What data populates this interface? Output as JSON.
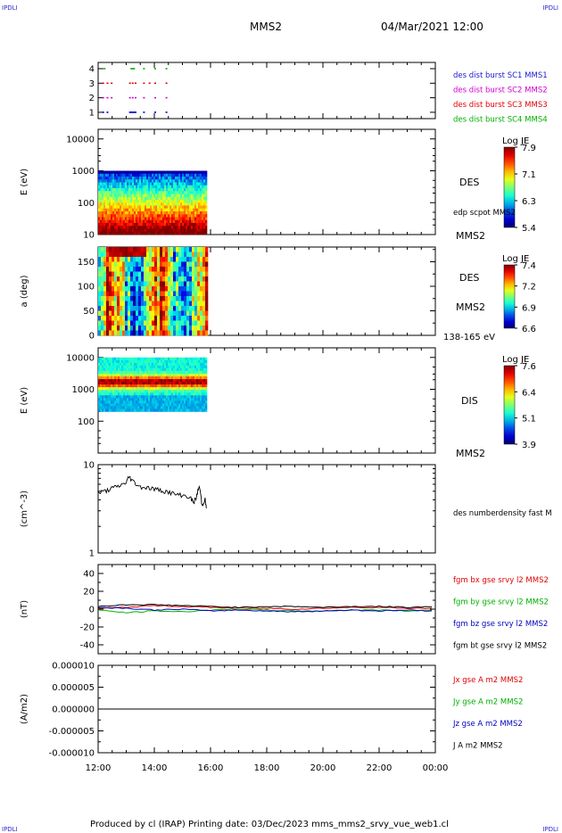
{
  "header": {
    "corner_left": "IPDLI",
    "corner_right": "IPDLI",
    "title": "MMS2",
    "datetime": "04/Mar/2021 12:00"
  },
  "footer": {
    "text": "Produced by cl (IRAP)   Printing date: 03/Dec/2023   mms_mms2_srvy_vue_web1.cl",
    "corner_left": "IPDLI",
    "corner_right": "IPDLI"
  },
  "time_axis": {
    "start_hour": 12,
    "end_hour": 24,
    "tick_labels": [
      "12:00",
      "14:00",
      "16:00",
      "18:00",
      "20:00",
      "22:00",
      "00:00"
    ],
    "tick_hours": [
      12,
      14,
      16,
      18,
      20,
      22,
      24
    ]
  },
  "colors": {
    "red": "#e00000",
    "magenta": "#d000d0",
    "blue": "#0000c0",
    "green": "#00b000",
    "black": "#000000",
    "label_blue": "#1a1ad0"
  },
  "chart_data": [
    {
      "type": "scatter",
      "panel": "availability",
      "yticks": [
        "4",
        "3",
        "2",
        "1"
      ],
      "legend": [
        {
          "label": "des dist burst SC1 MMS1",
          "color": "#1a1ad0"
        },
        {
          "label": "des dist burst SC2 MMS2",
          "color": "#d000d0"
        },
        {
          "label": "des dist burst SC3 MMS3",
          "color": "#e00000"
        },
        {
          "label": "des dist burst SC4 MMS4",
          "color": "#00b000"
        }
      ],
      "series": [
        {
          "sc": 4,
          "color": "#00b000",
          "x": [
            12.2,
            13.15,
            13.2,
            13.25,
            13.6,
            14.0,
            14.4
          ]
        },
        {
          "sc": 3,
          "color": "#e00000",
          "x": [
            12.15,
            12.3,
            12.45,
            13.1,
            13.2,
            13.3,
            13.6,
            13.8,
            14.0,
            14.4
          ]
        },
        {
          "sc": 2,
          "color": "#d000d0",
          "x": [
            12.15,
            12.3,
            12.45,
            13.1,
            13.2,
            13.3,
            13.6,
            14.0,
            14.4
          ]
        },
        {
          "sc": 1,
          "color": "#0000c0",
          "x": [
            12.15,
            12.3,
            13.1,
            13.15,
            13.2,
            13.25,
            13.3,
            13.6,
            14.0,
            14.4
          ]
        }
      ]
    },
    {
      "type": "heatmap",
      "panel": "des-energy",
      "ylabel": "E (eV)",
      "yscale": "log",
      "ylim": [
        10,
        20000
      ],
      "yticks": [
        "10000",
        "1000",
        "100",
        "10"
      ],
      "x_range_hours": [
        12.0,
        15.85
      ],
      "y_top": 1000,
      "colorbar": {
        "title": "Log JE",
        "labels": [
          "7.9",
          "7.1",
          "6.3",
          "5.4"
        ],
        "range": [
          5.4,
          7.9
        ]
      },
      "right_labels": [
        "DES",
        "edp scpot MMS2",
        "MMS2"
      ]
    },
    {
      "type": "heatmap",
      "panel": "des-pitch",
      "ylabel": "a (deg)",
      "ylim": [
        0,
        180
      ],
      "yticks": [
        "150",
        "100",
        "50",
        "0"
      ],
      "x_range_hours": [
        12.0,
        15.85
      ],
      "colorbar": {
        "title": "Log JE",
        "labels": [
          "7.4",
          "7.2",
          "6.9",
          "6.6"
        ],
        "range": [
          6.6,
          7.4
        ]
      },
      "right_labels": [
        "DES",
        "MMS2",
        "138-165 eV"
      ]
    },
    {
      "type": "heatmap",
      "panel": "dis-energy",
      "ylabel": "E (eV)",
      "yscale": "log",
      "ylim": [
        10,
        20000
      ],
      "yticks": [
        "10000",
        "1000",
        "100"
      ],
      "x_range_hours": [
        12.0,
        15.85
      ],
      "y_range": [
        200,
        10000
      ],
      "colorbar": {
        "title": "Log JE",
        "labels": [
          "7.6",
          "6.4",
          "5.1",
          "3.9"
        ],
        "range": [
          3.9,
          7.6
        ]
      },
      "right_labels": [
        "DIS",
        "MMS2"
      ]
    },
    {
      "type": "line",
      "panel": "density",
      "ylabel": "(cm^-3)",
      "yscale": "log",
      "ylim": [
        1,
        10
      ],
      "yticks": [
        "10",
        "1"
      ],
      "legend": [
        {
          "label": "des numberdensity fast M",
          "color": "#000000"
        }
      ],
      "x": [
        12.0,
        12.25,
        12.5,
        12.75,
        13.0,
        13.1,
        13.3,
        13.5,
        13.75,
        14.0,
        14.25,
        14.5,
        14.75,
        15.0,
        15.25,
        15.4,
        15.5,
        15.6,
        15.7,
        15.8,
        15.85
      ],
      "values": [
        4.8,
        5.0,
        5.4,
        5.7,
        6.3,
        7.3,
        6.2,
        5.6,
        5.5,
        5.3,
        5.1,
        4.9,
        4.6,
        4.5,
        4.3,
        3.7,
        4.3,
        5.7,
        3.4,
        4.1,
        3.2
      ]
    },
    {
      "type": "line",
      "panel": "magnetic-field",
      "ylabel": "(nT)",
      "ylim": [
        -50,
        50
      ],
      "yticks": [
        "40",
        "20",
        "0",
        "-20",
        "-40"
      ],
      "legend": [
        {
          "label": "fgm bx gse srvy l2 MMS2",
          "color": "#e00000"
        },
        {
          "label": "fgm by gse srvy l2 MMS2",
          "color": "#00b000"
        },
        {
          "label": "fgm bz gse srvy l2 MMS2",
          "color": "#0000c0"
        },
        {
          "label": "fgm bt gse srvy l2 MMS2",
          "color": "#000000"
        }
      ],
      "x": [
        12,
        13,
        14,
        15,
        16,
        17,
        18,
        19,
        20,
        21,
        22,
        23,
        24
      ],
      "series": [
        {
          "name": "bx",
          "color": "#e00000",
          "values": [
            1,
            2,
            4,
            3,
            2,
            1,
            1,
            0,
            1,
            2,
            2,
            1,
            1
          ]
        },
        {
          "name": "by",
          "color": "#00b000",
          "values": [
            -1,
            -4,
            -2,
            -3,
            -1,
            0,
            -1,
            -2,
            -2,
            -1,
            -1,
            -2,
            -1
          ]
        },
        {
          "name": "bz",
          "color": "#0000c0",
          "values": [
            2,
            1,
            -1,
            0,
            -2,
            -1,
            -2,
            -3,
            -2,
            -1,
            -2,
            -1,
            -2
          ]
        },
        {
          "name": "bt",
          "color": "#000000",
          "values": [
            3,
            5,
            5,
            4,
            3,
            2,
            3,
            3,
            2,
            3,
            3,
            2,
            3
          ]
        }
      ]
    },
    {
      "type": "line",
      "panel": "current",
      "ylabel": "(A/m2)",
      "ylim": [
        -1e-05,
        1e-05
      ],
      "yticks": [
        "0.000010",
        "0.000005",
        "0.000000",
        "-0.000005",
        "-0.000010"
      ],
      "legend": [
        {
          "label": "Jx gse A m2 MMS2",
          "color": "#e00000"
        },
        {
          "label": "Jy gse A m2 MMS2",
          "color": "#00b000"
        },
        {
          "label": "Jz gse A m2 MMS2",
          "color": "#0000c0"
        },
        {
          "label": "J A m2 MMS2",
          "color": "#000000"
        }
      ],
      "x": [
        12,
        24
      ],
      "values": [
        0,
        0
      ]
    }
  ]
}
